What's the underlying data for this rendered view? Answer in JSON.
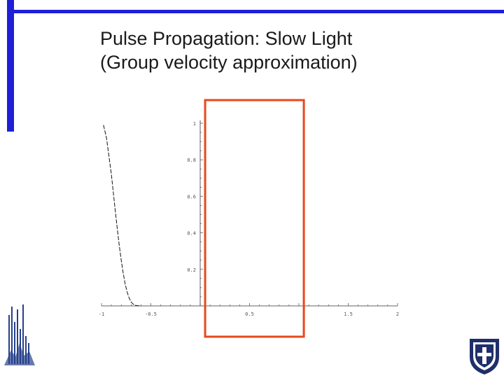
{
  "slide": {
    "title_line1": "Pulse Propagation:  Slow Light",
    "title_line2": "(Group velocity approximation)",
    "accent_color": "#1f1fd6",
    "highlight_color": "#e8481c"
  },
  "chart_data": {
    "type": "line",
    "title": "",
    "xlabel": "",
    "ylabel": "",
    "xlim": [
      -1,
      2
    ],
    "ylim": [
      0,
      1
    ],
    "x_ticks": [
      -1,
      -0.5,
      0.5,
      1.5,
      2
    ],
    "x_tick_labels": [
      "-1",
      "-0.5",
      "0.5",
      "1.5",
      "2"
    ],
    "y_ticks": [
      0.2,
      0.4,
      0.6,
      0.8,
      1
    ],
    "y_tick_labels": [
      "0.2",
      "0.4",
      "0.6",
      "0.8",
      "1"
    ],
    "grid": false,
    "series": [
      {
        "style": "dashed",
        "x": [
          -0.98,
          -0.95,
          -0.92,
          -0.9,
          -0.88,
          -0.86,
          -0.84,
          -0.82,
          -0.8,
          -0.78,
          -0.76,
          -0.74,
          -0.72,
          -0.7,
          -0.68,
          -0.66,
          -0.64,
          -0.62,
          -0.6
        ],
        "y": [
          0.99,
          0.92,
          0.8,
          0.72,
          0.62,
          0.52,
          0.42,
          0.33,
          0.25,
          0.18,
          0.12,
          0.075,
          0.043,
          0.022,
          0.01,
          0.004,
          0.0015,
          0.0005,
          0
        ]
      }
    ],
    "highlight_box": {
      "x_range": [
        0.05,
        1.05
      ],
      "color": "#e8481c"
    }
  }
}
